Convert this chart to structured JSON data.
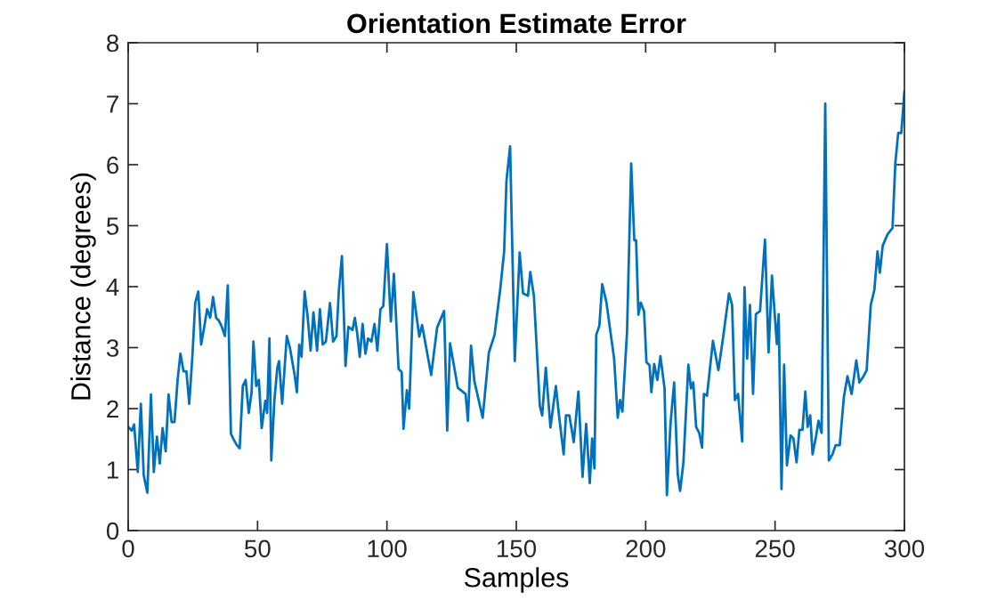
{
  "chart_data": {
    "type": "line",
    "title": "Orientation Estimate Error",
    "xlabel": "Samples",
    "ylabel": "Distance (degrees)",
    "xlim": [
      0,
      300
    ],
    "ylim": [
      0,
      8
    ],
    "xticks": [
      0,
      50,
      100,
      150,
      200,
      250,
      300
    ],
    "yticks": [
      0,
      1,
      2,
      3,
      4,
      5,
      6,
      7,
      8
    ],
    "grid": false,
    "marker": "none",
    "line_style": "solid",
    "series": [
      {
        "color": "#0072bd",
        "x": [
          0,
          1.4,
          2.3,
          3.7,
          4.9,
          6.0,
          7.4,
          8.8,
          9.9,
          11.1,
          12.2,
          13.3,
          14.5,
          15.6,
          16.8,
          17.9,
          19.1,
          20.2,
          21.4,
          22.5,
          23.6,
          24.8,
          25.9,
          27.1,
          28.2,
          29.4,
          30.5,
          31.7,
          32.8,
          34.0,
          35.1,
          36.2,
          37.4,
          38.5,
          39.7,
          40.8,
          42.0,
          43.1,
          44.3,
          45.4,
          46.6,
          47.7,
          48.4,
          49.5,
          50.5,
          51.6,
          53.0,
          53.7,
          54.6,
          55.3,
          56.5,
          57.6,
          58.3,
          59.5,
          61.3,
          62.5,
          64.3,
          65.2,
          66.1,
          67.0,
          68.2,
          69.3,
          70.5,
          71.6,
          73.0,
          74.1,
          75.2,
          76.4,
          78.0,
          79.2,
          80.5,
          81.4,
          82.6,
          84.0,
          85.1,
          86.7,
          87.6,
          88.5,
          89.5,
          90.6,
          91.7,
          92.7,
          94.0,
          95.2,
          96.3,
          97.5,
          98.6,
          100.0,
          101.5,
          102.7,
          104.5,
          105.7,
          106.4,
          107.7,
          108.6,
          110.2,
          112.5,
          113.6,
          117.1,
          119.4,
          122.1,
          123.3,
          124.4,
          127.4,
          130.4,
          131.3,
          132.5,
          133.8,
          137.0,
          139.4,
          141.6,
          143.9,
          145.3,
          146.2,
          147.6,
          149.4,
          151.3,
          152.6,
          154.5,
          155.4,
          156.8,
          159.1,
          160.0,
          161.4,
          163.2,
          165.3,
          166.4,
          168.3,
          169.2,
          170.5,
          172.2,
          174.0,
          175.6,
          177.0,
          178.4,
          179.3,
          180.2,
          180.9,
          182.1,
          183.2,
          184.8,
          187.8,
          189.2,
          190.1,
          191.0,
          192.8,
          194.4,
          195.6,
          196.3,
          197.2,
          198.1,
          199.4,
          200.3,
          201.5,
          202.2,
          203.3,
          204.5,
          205.7,
          207.3,
          208.2,
          209.6,
          211.0,
          212.4,
          213.3,
          214.6,
          216.5,
          217.5,
          218.4,
          219.5,
          220.7,
          221.8,
          222.5,
          223.7,
          226.0,
          228.1,
          229.9,
          232.2,
          233.4,
          234.5,
          235.7,
          237.3,
          238.2,
          239.2,
          240.3,
          241.5,
          242.6,
          244.2,
          246.1,
          247.5,
          248.8,
          250.7,
          251.4,
          252.5,
          253.5,
          254.6,
          256.0,
          257.1,
          258.3,
          259.4,
          260.6,
          261.7,
          262.6,
          263.6,
          264.5,
          265.9,
          266.8,
          268.0,
          269.4,
          270.8,
          272.2,
          273.4,
          275.0,
          276.6,
          278.0,
          279.6,
          281.4,
          282.6,
          284.2,
          285.4,
          287.0,
          288.4,
          289.6,
          290.5,
          291.6,
          293.5,
          295.4,
          296.5,
          297.6,
          298.8,
          300.0
        ],
        "values": [
          1.7,
          1.64,
          1.74,
          0.96,
          2.08,
          0.91,
          0.62,
          2.23,
          0.96,
          1.54,
          1.1,
          1.68,
          1.3,
          2.23,
          1.78,
          1.78,
          2.47,
          2.9,
          2.61,
          2.61,
          2.08,
          2.85,
          3.73,
          3.92,
          3.05,
          3.34,
          3.63,
          3.49,
          3.83,
          3.49,
          3.44,
          3.34,
          3.19,
          4.02,
          1.59,
          1.49,
          1.4,
          1.35,
          2.37,
          2.47,
          1.93,
          2.27,
          3.1,
          2.37,
          2.47,
          1.68,
          2.13,
          1.93,
          3.15,
          1.15,
          2.13,
          2.66,
          2.78,
          2.08,
          3.19,
          3.0,
          2.56,
          2.27,
          3.05,
          2.85,
          3.92,
          3.53,
          2.95,
          3.58,
          2.95,
          3.63,
          3.05,
          3.1,
          3.73,
          3.1,
          3.19,
          3.92,
          4.5,
          2.7,
          3.34,
          3.29,
          3.49,
          3.24,
          2.85,
          3.39,
          2.9,
          3.15,
          3.1,
          3.39,
          2.95,
          3.63,
          3.68,
          4.7,
          3.43,
          4.21,
          2.65,
          2.6,
          1.67,
          2.3,
          2.0,
          3.91,
          3.18,
          3.37,
          2.55,
          3.33,
          3.6,
          1.64,
          3.07,
          2.34,
          2.24,
          1.8,
          3.03,
          2.45,
          1.85,
          2.92,
          3.21,
          4.0,
          4.58,
          5.74,
          6.3,
          2.78,
          4.56,
          3.89,
          3.85,
          4.24,
          3.85,
          2.04,
          1.89,
          2.67,
          1.69,
          2.37,
          1.93,
          1.25,
          1.89,
          1.89,
          1.45,
          2.28,
          0.88,
          1.75,
          0.78,
          1.51,
          1.02,
          3.21,
          3.36,
          4.04,
          3.75,
          2.82,
          1.85,
          2.14,
          1.95,
          3.26,
          6.02,
          4.76,
          4.76,
          3.54,
          3.74,
          3.59,
          2.76,
          2.71,
          2.27,
          2.73,
          2.47,
          2.86,
          2.33,
          0.58,
          1.75,
          2.43,
          0.92,
          0.65,
          1.12,
          2.72,
          2.33,
          2.43,
          1.7,
          1.6,
          1.36,
          2.24,
          2.21,
          3.11,
          2.63,
          3.16,
          3.89,
          3.7,
          2.14,
          2.24,
          1.46,
          3.99,
          2.82,
          3.7,
          2.24,
          3.55,
          3.6,
          4.77,
          2.92,
          4.18,
          3.06,
          3.55,
          0.68,
          2.72,
          1.07,
          1.56,
          1.51,
          1.12,
          1.65,
          1.65,
          2.28,
          1.7,
          1.89,
          1.25,
          1.56,
          1.8,
          1.6,
          7.0,
          1.15,
          1.25,
          1.4,
          1.4,
          2.19,
          2.53,
          2.24,
          2.79,
          2.43,
          2.53,
          2.63,
          3.7,
          3.95,
          4.58,
          4.23,
          4.67,
          4.86,
          4.96,
          6.03,
          6.52,
          6.52,
          7.2
        ]
      }
    ]
  }
}
